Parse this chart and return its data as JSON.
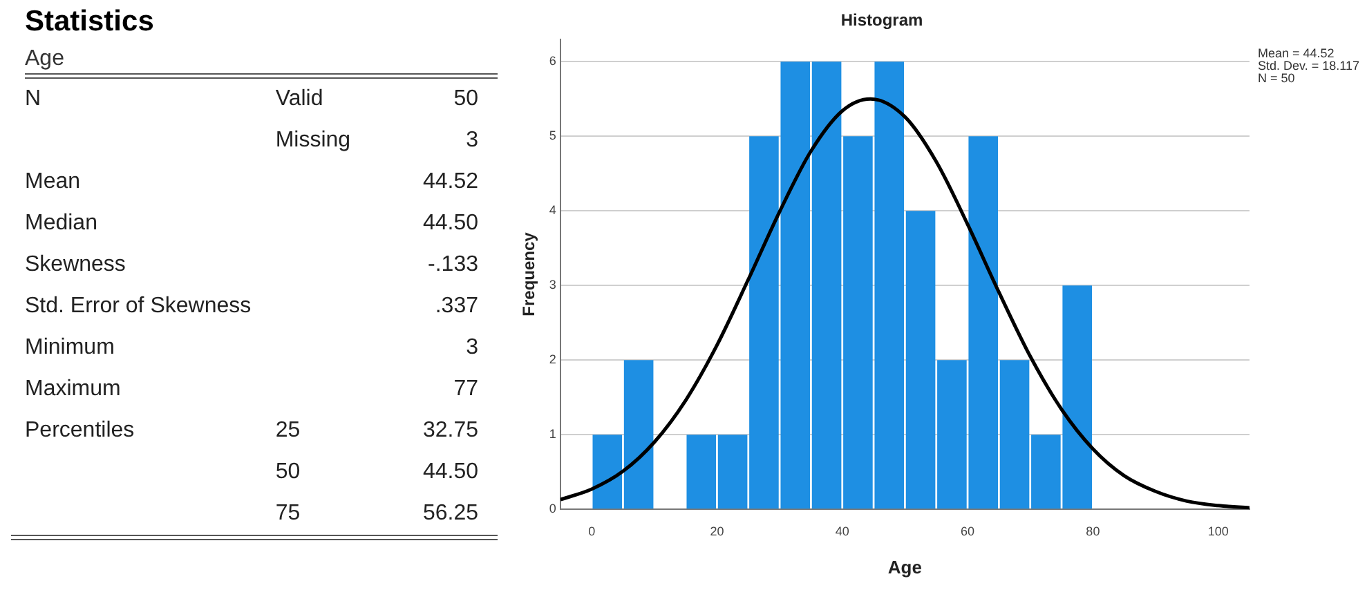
{
  "chart_data": [
    {
      "type": "other",
      "title": "Statistics",
      "subtitle": "Age",
      "cell_labels": [
        [
          "N",
          "Valid",
          "50"
        ],
        [
          null,
          "Missing",
          "3"
        ],
        [
          "Mean",
          null,
          "44.52"
        ],
        [
          "Median",
          null,
          "44.50"
        ],
        [
          "Skewness",
          null,
          "-.133"
        ],
        [
          "Std. Error of Skewness",
          null,
          ".337"
        ],
        [
          "Minimum",
          null,
          "3"
        ],
        [
          "Maximum",
          null,
          "77"
        ],
        [
          "Percentiles",
          "25",
          "32.75"
        ],
        [
          null,
          "50",
          "44.50"
        ],
        [
          null,
          "75",
          "56.25"
        ]
      ]
    },
    {
      "type": "histogram",
      "title": "Histogram",
      "xlabel": "Age",
      "ylabel": "Frequency",
      "bins": [
        0,
        5,
        10,
        15,
        20,
        25,
        30,
        35,
        40,
        45,
        50,
        55,
        60,
        65,
        70,
        75,
        80
      ],
      "values": [
        1,
        2,
        0,
        1,
        1,
        5,
        6,
        6,
        5,
        6,
        4,
        2,
        5,
        2,
        1,
        3
      ],
      "color": "#1e8fe3",
      "series": [
        {
          "type": "line",
          "color": "#000000",
          "x": [
            -5,
            0,
            5,
            10,
            15,
            20,
            25,
            30,
            35,
            40,
            44.5,
            50,
            55,
            60,
            65,
            70,
            75,
            80,
            85,
            90,
            95,
            100,
            105
          ],
          "values": [
            0.13,
            0.27,
            0.51,
            0.9,
            1.46,
            2.2,
            3.08,
            3.99,
            4.8,
            5.34,
            5.5,
            5.26,
            4.66,
            3.82,
            2.91,
            2.05,
            1.34,
            0.81,
            0.45,
            0.24,
            0.11,
            0.05,
            0.02
          ]
        }
      ],
      "xlim": [
        -5,
        105
      ],
      "xticks": [
        0,
        20,
        40,
        60,
        80,
        100
      ],
      "ylim": [
        0,
        6.3
      ],
      "yticks": [
        0,
        1,
        2,
        3,
        4,
        5,
        6
      ],
      "grid": "y",
      "legend": false,
      "marker": "none",
      "annotations": [
        "Mean = 44.52",
        "Std. Dev. = 18.117",
        "N = 50"
      ]
    }
  ]
}
